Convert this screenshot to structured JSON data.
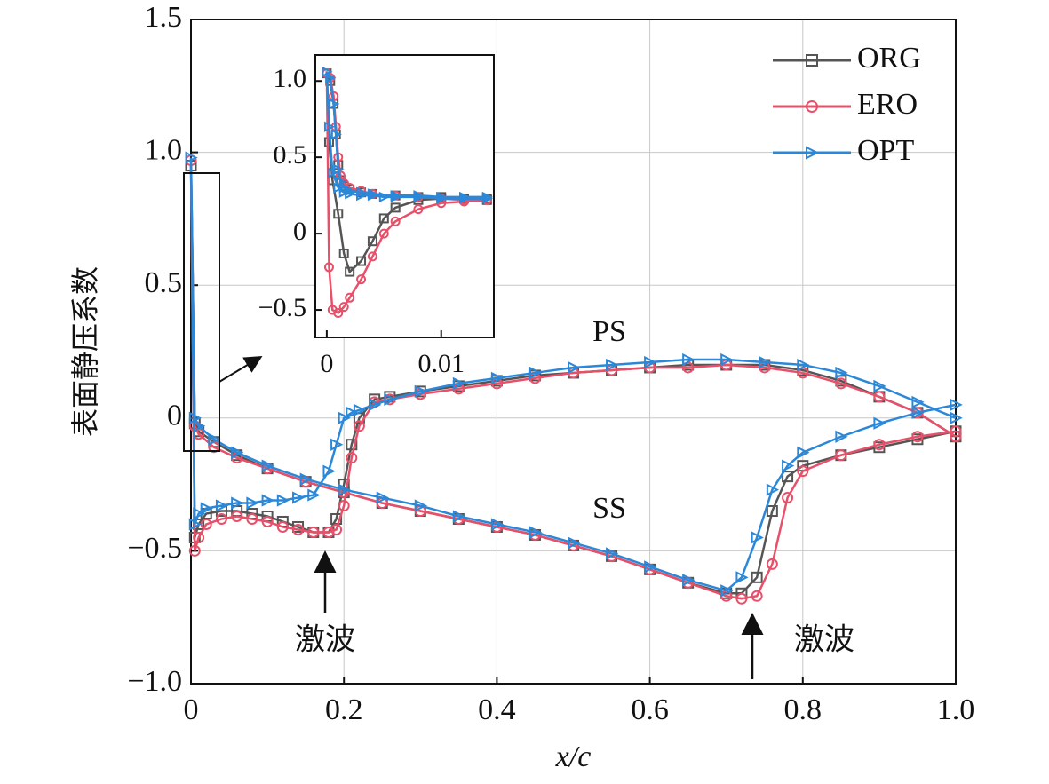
{
  "chart_data": [
    {
      "type": "line",
      "x_label": "x/c",
      "y_label": "表面静压系数",
      "xlim": [
        0,
        1.0
      ],
      "ylim": [
        -1.0,
        1.5
      ],
      "xticks": [
        0,
        0.2,
        0.4,
        0.6,
        0.8,
        {
          "value": 1,
          "label": "1.0"
        }
      ],
      "yticks": [
        {
          "value": -1,
          "label": "−1.0"
        },
        {
          "value": -0.5,
          "label": "−0.5"
        },
        0,
        {
          "value": 0.5,
          "label": "0.5"
        },
        {
          "value": 1,
          "label": "1.0"
        },
        {
          "value": 1.5,
          "label": "1.5"
        }
      ],
      "grid": true,
      "legend": "upper right",
      "annotations": [
        "PS",
        "SS",
        "激波",
        "激波"
      ],
      "x": [
        1.0,
        0.95,
        0.9,
        0.85,
        0.8,
        0.78,
        0.76,
        0.74,
        0.72,
        0.7,
        0.65,
        0.6,
        0.55,
        0.5,
        0.45,
        0.4,
        0.35,
        0.3,
        0.25,
        0.2,
        0.15,
        0.1,
        0.06,
        0.03,
        0.01,
        0.005,
        0,
        0.005,
        0.01,
        0.02,
        0.04,
        0.06,
        0.08,
        0.1,
        0.12,
        0.14,
        0.16,
        0.18,
        0.19,
        0.2,
        0.21,
        0.22,
        0.24,
        0.26,
        0.3,
        0.35,
        0.4,
        0.45,
        0.5,
        0.55,
        0.6,
        0.65,
        0.7,
        0.75,
        0.8,
        0.85,
        0.9,
        0.95,
        1.0
      ],
      "series": [
        {
          "name": "ORG",
          "color": "#555555",
          "marker": "square",
          "values": [
            -0.05,
            -0.08,
            -0.11,
            -0.14,
            -0.18,
            -0.22,
            -0.35,
            -0.6,
            -0.66,
            -0.66,
            -0.62,
            -0.57,
            -0.52,
            -0.48,
            -0.44,
            -0.41,
            -0.38,
            -0.35,
            -0.32,
            -0.28,
            -0.24,
            -0.19,
            -0.14,
            -0.09,
            -0.05,
            -0.02,
            0.95,
            -0.45,
            -0.4,
            -0.36,
            -0.35,
            -0.35,
            -0.36,
            -0.37,
            -0.39,
            -0.41,
            -0.43,
            -0.43,
            -0.38,
            -0.25,
            -0.1,
            0.0,
            0.07,
            0.08,
            0.1,
            0.12,
            0.14,
            0.16,
            0.17,
            0.18,
            0.19,
            0.2,
            0.2,
            0.2,
            0.18,
            0.14,
            0.08,
            0.02,
            -0.07
          ]
        },
        {
          "name": "ERO",
          "color": "#e8506a",
          "marker": "circle",
          "values": [
            -0.05,
            -0.07,
            -0.1,
            -0.14,
            -0.2,
            -0.3,
            -0.55,
            -0.67,
            -0.68,
            -0.67,
            -0.62,
            -0.57,
            -0.52,
            -0.48,
            -0.44,
            -0.41,
            -0.38,
            -0.35,
            -0.32,
            -0.28,
            -0.24,
            -0.19,
            -0.15,
            -0.11,
            -0.06,
            -0.03,
            0.97,
            -0.5,
            -0.45,
            -0.4,
            -0.38,
            -0.37,
            -0.38,
            -0.39,
            -0.41,
            -0.42,
            -0.43,
            -0.43,
            -0.42,
            -0.33,
            -0.15,
            -0.03,
            0.06,
            0.07,
            0.09,
            0.11,
            0.13,
            0.15,
            0.17,
            0.18,
            0.19,
            0.19,
            0.2,
            0.19,
            0.17,
            0.13,
            0.08,
            0.02,
            -0.07
          ]
        },
        {
          "name": "OPT",
          "color": "#2b88d8",
          "marker": "triangle",
          "values": [
            0.05,
            0.02,
            -0.02,
            -0.07,
            -0.13,
            -0.18,
            -0.27,
            -0.45,
            -0.6,
            -0.65,
            -0.61,
            -0.56,
            -0.51,
            -0.47,
            -0.43,
            -0.4,
            -0.37,
            -0.33,
            -0.3,
            -0.27,
            -0.23,
            -0.18,
            -0.13,
            -0.08,
            -0.03,
            0.0,
            0.98,
            -0.4,
            -0.36,
            -0.34,
            -0.33,
            -0.32,
            -0.32,
            -0.31,
            -0.31,
            -0.3,
            -0.29,
            -0.2,
            -0.1,
            0.0,
            0.02,
            0.03,
            0.05,
            0.07,
            0.1,
            0.13,
            0.15,
            0.17,
            0.19,
            0.2,
            0.21,
            0.22,
            0.22,
            0.21,
            0.2,
            0.17,
            0.12,
            0.06,
            0.0
          ]
        }
      ]
    },
    {
      "type": "line",
      "xlim": [
        -0.001,
        0.0146
      ],
      "ylim": [
        -0.68,
        1.17
      ],
      "xticks": [
        0,
        0.01
      ],
      "yticks": [
        {
          "value": -0.5,
          "label": "−0.5"
        },
        0,
        0.5,
        {
          "value": 1,
          "label": "1.0"
        }
      ],
      "x": [
        0.014,
        0.012,
        0.01,
        0.008,
        0.006,
        0.004,
        0.003,
        0.002,
        0.0015,
        0.0012,
        0.001,
        0.0008,
        0.0006,
        0.0003,
        0,
        0.0002,
        0.0005,
        0.001,
        0.0015,
        0.002,
        0.003,
        0.004,
        0.005,
        0.006,
        0.008,
        0.01,
        0.012,
        0.014
      ],
      "series": [
        {
          "name": "ORG",
          "color": "#555555",
          "marker": "square",
          "values": [
            0.23,
            0.23,
            0.24,
            0.24,
            0.25,
            0.26,
            0.27,
            0.29,
            0.31,
            0.35,
            0.45,
            0.65,
            0.85,
            1.0,
            1.05,
            0.6,
            0.35,
            0.13,
            -0.13,
            -0.25,
            -0.18,
            -0.05,
            0.1,
            0.17,
            0.22,
            0.23,
            0.23,
            0.22
          ]
        },
        {
          "name": "ERO",
          "color": "#e8506a",
          "marker": "circle",
          "values": [
            0.22,
            0.22,
            0.23,
            0.24,
            0.25,
            0.26,
            0.28,
            0.3,
            0.33,
            0.38,
            0.5,
            0.7,
            0.9,
            1.02,
            1.05,
            -0.22,
            -0.5,
            -0.52,
            -0.48,
            -0.42,
            -0.3,
            -0.15,
            0,
            0.08,
            0.16,
            0.2,
            0.21,
            0.22
          ]
        },
        {
          "name": "OPT",
          "color": "#2b88d8",
          "marker": "triangle",
          "values": [
            0.24,
            0.24,
            0.24,
            0.25,
            0.25,
            0.26,
            0.27,
            0.28,
            0.3,
            0.34,
            0.42,
            0.65,
            0.85,
            1.02,
            1.06,
            0.7,
            0.4,
            0.3,
            0.27,
            0.26,
            0.25,
            0.25,
            0.24,
            0.24,
            0.24,
            0.23,
            0.23,
            0.23
          ]
        }
      ]
    }
  ]
}
